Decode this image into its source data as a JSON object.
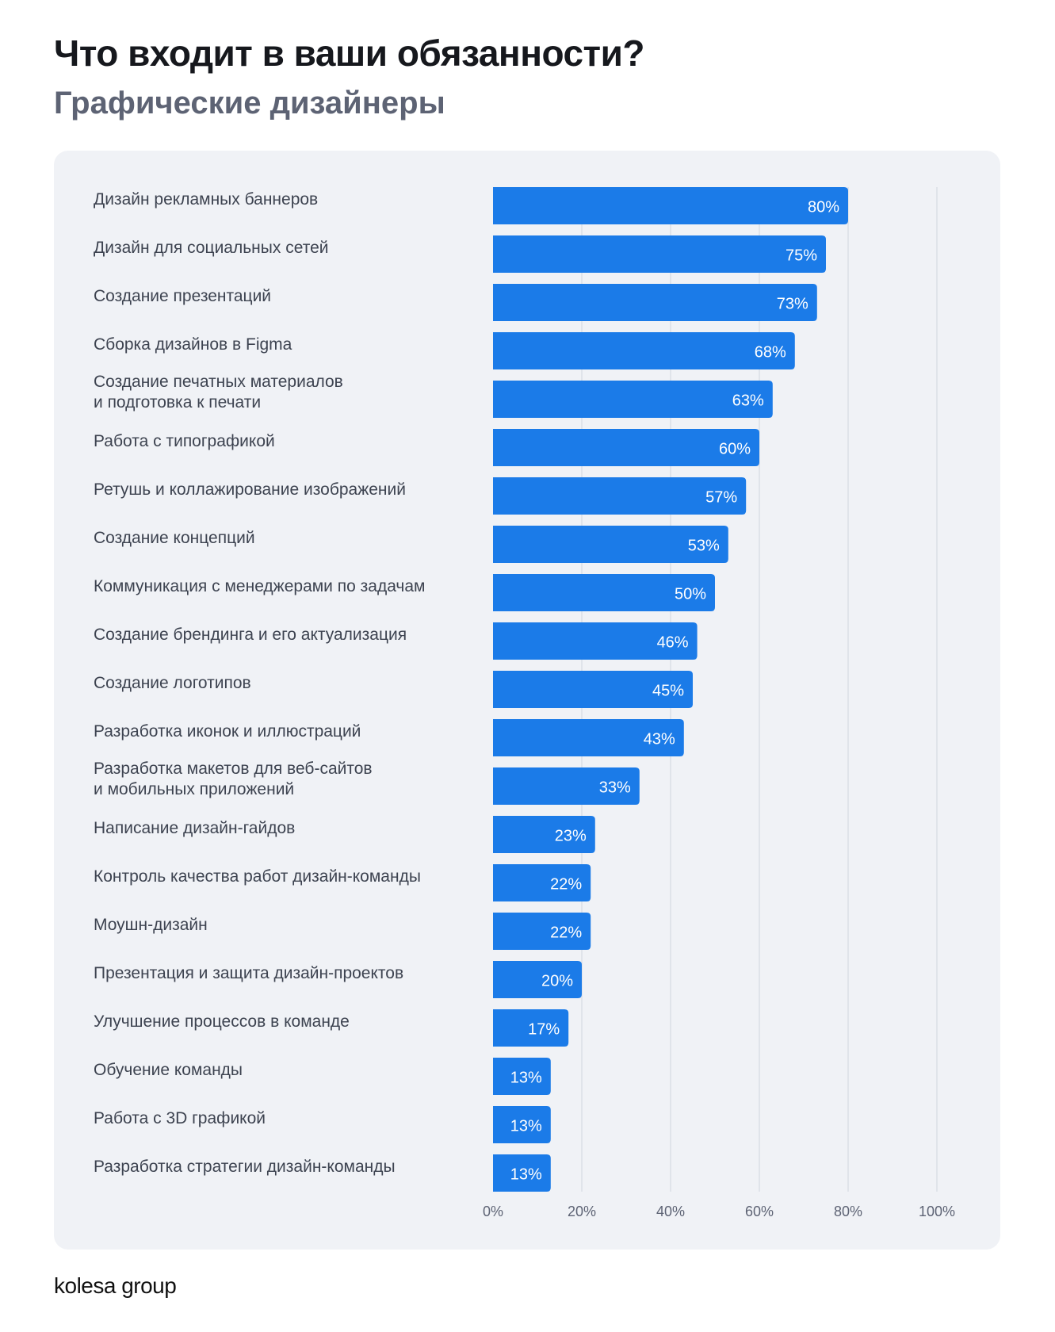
{
  "header": {
    "title": "Что входит в ваши обязанности?",
    "subtitle": "Графические дизайнеры"
  },
  "logo": "kolesa group",
  "colors": {
    "bar": "#1b7be8",
    "card": "#f0f2f6",
    "grid": "#cfd5de"
  },
  "chart_data": {
    "type": "bar",
    "orientation": "horizontal",
    "title": "Что входит в ваши обязанности?",
    "subtitle": "Графические дизайнеры",
    "categories": [
      "Дизайн рекламных баннеров",
      "Дизайн для социальных сетей",
      "Создание презентаций",
      "Сборка дизайнов в Figma",
      "Создание печатных материалов\nи подготовка к печати",
      "Работа с типографикой",
      "Ретушь и коллажирование изображений",
      "Создание концепций",
      "Коммуникация с менеджерами по задачам",
      "Создание брендинга и его актуализация",
      "Создание логотипов",
      "Разработка иконок и иллюстраций",
      "Разработка макетов для веб-сайтов\nи мобильных приложений",
      "Написание дизайн-гайдов",
      "Контроль качества работ дизайн-команды",
      "Моушн-дизайн",
      "Презентация и защита дизайн-проектов",
      "Улучшение процессов в команде",
      "Обучение команды",
      "Работа с 3D графикой",
      "Разработка стратегии дизайн-команды"
    ],
    "values": [
      80,
      75,
      73,
      68,
      63,
      60,
      57,
      53,
      50,
      46,
      45,
      43,
      33,
      23,
      22,
      22,
      20,
      17,
      13,
      13,
      13
    ],
    "data_labels": [
      "80%",
      "75%",
      "73%",
      "68%",
      "63%",
      "60%",
      "57%",
      "53%",
      "50%",
      "46%",
      "45%",
      "43%",
      "33%",
      "23%",
      "22%",
      "22%",
      "20%",
      "17%",
      "13%",
      "13%",
      "13%"
    ],
    "xlim": [
      0,
      100
    ],
    "xticks": [
      "0%",
      "20%",
      "40%",
      "60%",
      "80%",
      "100%"
    ],
    "grid": true
  }
}
